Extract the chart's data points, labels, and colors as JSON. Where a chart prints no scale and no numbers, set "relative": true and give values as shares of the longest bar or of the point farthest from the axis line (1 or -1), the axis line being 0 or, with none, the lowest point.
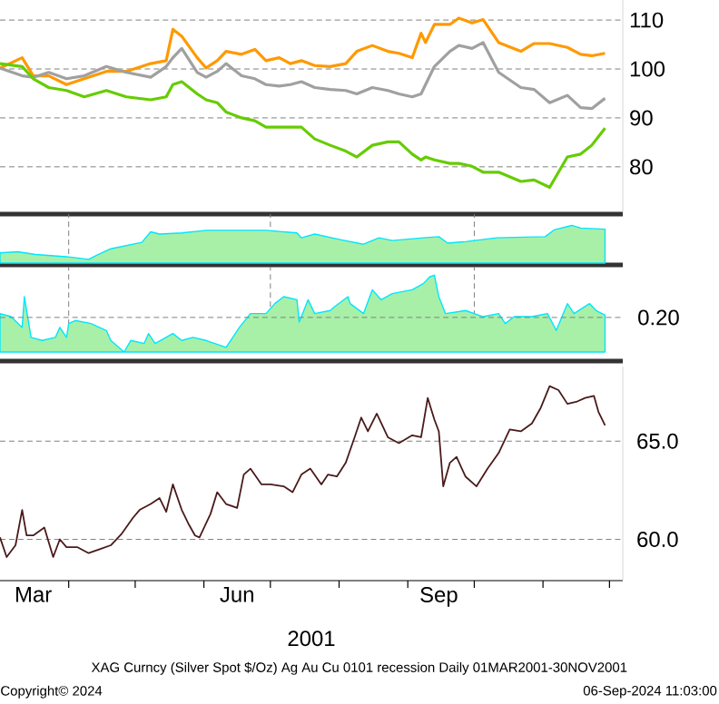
{
  "chart_data": [
    {
      "type": "line",
      "x": [
        "2001-03-01",
        "2001-03-11",
        "2001-03-16",
        "2001-03-23",
        "2001-03-31",
        "2001-04-08",
        "2001-04-18",
        "2001-04-27",
        "2001-05-08",
        "2001-05-15",
        "2001-05-18",
        "2001-05-22",
        "2001-05-29",
        "2001-06-02",
        "2001-06-07",
        "2001-06-11",
        "2001-06-18",
        "2001-06-24",
        "2001-06-29",
        "2001-07-05",
        "2001-07-10",
        "2001-07-15",
        "2001-07-21",
        "2001-07-28",
        "2001-08-04",
        "2001-08-09",
        "2001-08-16",
        "2001-08-23",
        "2001-08-28",
        "2001-09-03",
        "2001-09-07",
        "2001-09-09",
        "2001-09-13",
        "2001-09-20",
        "2001-09-24",
        "2001-09-30",
        "2001-10-05",
        "2001-10-12",
        "2001-10-22",
        "2001-10-28",
        "2001-11-04",
        "2001-11-12",
        "2001-11-18",
        "2001-11-23",
        "2001-11-29"
      ],
      "series": [
        {
          "color": "#ff9900",
          "values": [
            100.2,
            102.3,
            98.6,
            98.6,
            96.8,
            98.0,
            99.5,
            99.5,
            101.1,
            101.7,
            108.1,
            106.7,
            102.3,
            100.2,
            101.7,
            103.6,
            103.0,
            104.0,
            101.7,
            102.3,
            101.1,
            101.7,
            100.7,
            100.5,
            101.1,
            103.6,
            104.8,
            103.6,
            103.2,
            102.3,
            107.3,
            105.4,
            109.1,
            109.1,
            110.4,
            109.4,
            110.1,
            105.4,
            103.6,
            105.2,
            105.2,
            104.4,
            103.0,
            102.7,
            103.2
          ]
        },
        {
          "color": "#a0a0a0",
          "values": [
            100.2,
            98.6,
            98.3,
            99.3,
            98.0,
            98.6,
            100.5,
            99.3,
            98.3,
            100.5,
            102.3,
            104.2,
            99.3,
            98.3,
            99.5,
            101.1,
            98.6,
            98.0,
            96.8,
            96.5,
            96.8,
            97.4,
            96.2,
            95.8,
            95.6,
            94.9,
            96.2,
            95.6,
            94.9,
            94.3,
            94.9,
            96.8,
            100.5,
            103.6,
            104.8,
            104.2,
            105.4,
            99.3,
            96.2,
            95.8,
            93.1,
            94.6,
            92.1,
            91.9,
            94.0
          ]
        },
        {
          "color": "#66cc00",
          "values": [
            101.1,
            100.5,
            98.0,
            96.2,
            95.6,
            94.3,
            95.6,
            94.3,
            93.7,
            94.3,
            96.8,
            97.4,
            94.9,
            93.7,
            93.1,
            91.2,
            90.0,
            89.4,
            88.1,
            88.1,
            88.1,
            88.1,
            85.7,
            84.4,
            83.2,
            82.0,
            84.4,
            85.1,
            85.1,
            82.6,
            81.4,
            82.0,
            81.4,
            80.7,
            80.7,
            80.1,
            78.9,
            78.9,
            77.0,
            77.3,
            75.8,
            82.0,
            82.6,
            84.4,
            87.9
          ]
        }
      ],
      "xlim": [
        "2001-03-01",
        "2001-12-07"
      ],
      "ylim": [
        70.7,
        114.1
      ],
      "yticks": [
        80,
        90,
        100,
        110
      ],
      "grid": "y",
      "tick_labels": "y"
    },
    {
      "type": "area",
      "relative": true,
      "x": [
        "2001-03-01",
        "2001-03-09",
        "2001-03-17",
        "2001-03-31",
        "2001-04-10",
        "2001-04-14",
        "2001-04-20",
        "2001-05-04",
        "2001-05-08",
        "2001-05-12",
        "2001-05-22",
        "2001-06-02",
        "2001-06-29",
        "2001-07-13",
        "2001-07-15",
        "2001-07-21",
        "2001-08-01",
        "2001-08-12",
        "2001-08-19",
        "2001-08-25",
        "2001-09-08",
        "2001-09-15",
        "2001-09-19",
        "2001-09-27",
        "2001-10-11",
        "2001-11-02",
        "2001-11-06",
        "2001-11-14",
        "2001-11-18",
        "2001-11-29"
      ],
      "values": [
        0.27,
        0.3,
        0.23,
        0.17,
        0.1,
        0.22,
        0.38,
        0.55,
        0.83,
        0.77,
        0.8,
        0.87,
        0.87,
        0.8,
        0.67,
        0.77,
        0.63,
        0.5,
        0.67,
        0.6,
        0.67,
        0.7,
        0.53,
        0.57,
        0.67,
        0.7,
        0.88,
        1,
        0.93,
        0.9
      ],
      "color": "#00e5ff",
      "xlim": [
        "2001-03-01",
        "2001-12-07"
      ],
      "xticks": [
        {
          "value": "2001-04-01",
          "label": null
        },
        {
          "value": "2001-07-01",
          "label": null
        },
        {
          "value": "2001-10-01",
          "label": null
        }
      ],
      "grid": "x",
      "tick_labels": false
    },
    {
      "type": "area",
      "relative": true,
      "x": [
        "2001-03-01",
        "2001-03-06",
        "2001-03-11",
        "2001-03-12",
        "2001-03-15",
        "2001-03-20",
        "2001-03-26",
        "2001-03-28",
        "2001-03-31",
        "2001-04-01",
        "2001-04-04",
        "2001-04-11",
        "2001-04-18",
        "2001-04-20",
        "2001-04-26",
        "2001-04-29",
        "2001-05-05",
        "2001-05-07",
        "2001-05-10",
        "2001-05-18",
        "2001-05-22",
        "2001-05-27",
        "2001-06-02",
        "2001-06-11",
        "2001-06-17",
        "2001-06-22",
        "2001-06-29",
        "2001-07-03",
        "2001-07-07",
        "2001-07-13",
        "2001-07-14",
        "2001-07-18",
        "2001-07-21",
        "2001-07-28",
        "2001-07-30",
        "2001-08-05",
        "2001-08-06",
        "2001-08-12",
        "2001-08-16",
        "2001-08-20",
        "2001-08-25",
        "2001-09-03",
        "2001-09-08",
        "2001-09-11",
        "2001-09-13",
        "2001-09-15",
        "2001-09-18",
        "2001-09-27",
        "2001-10-05",
        "2001-10-12",
        "2001-10-15",
        "2001-10-19",
        "2001-10-27",
        "2001-11-03",
        "2001-11-07",
        "2001-11-12",
        "2001-11-15",
        "2001-11-22",
        "2001-11-25",
        "2001-11-29"
      ],
      "values": [
        0.5,
        0.46,
        0.32,
        0.72,
        0.19,
        0.15,
        0.19,
        0.32,
        0.19,
        0.37,
        0.41,
        0.37,
        0.28,
        0.15,
        0,
        0.15,
        0.11,
        0.24,
        0.11,
        0.24,
        0.15,
        0.19,
        0.15,
        0.06,
        0.32,
        0.5,
        0.5,
        0.63,
        0.72,
        0.68,
        0.39,
        0.68,
        0.5,
        0.54,
        0.59,
        0.72,
        0.63,
        0.5,
        0.81,
        0.68,
        0.76,
        0.81,
        0.89,
        0.98,
        1,
        0.72,
        0.5,
        0.54,
        0.46,
        0.5,
        0.37,
        0.46,
        0.46,
        0.5,
        0.28,
        0.63,
        0.5,
        0.63,
        0.54,
        0.48
      ],
      "color": "#00e5ff",
      "xlim": [
        "2001-03-01",
        "2001-12-07"
      ],
      "xticks": [
        {
          "value": "2001-04-01",
          "label": null
        },
        {
          "value": "2001-07-01",
          "label": null
        },
        {
          "value": "2001-10-01",
          "label": null
        }
      ],
      "ref_lines": [
        {
          "axis": "y",
          "value": 0.45,
          "color": "#808080",
          "line_style": "dashed"
        }
      ],
      "annotations": [
        "0.20"
      ],
      "grid": "x",
      "tick_labels": false
    },
    {
      "type": "line",
      "x": [
        "2001-03-01",
        "2001-03-04",
        "2001-03-08",
        "2001-03-11",
        "2001-03-13",
        "2001-03-16",
        "2001-03-21",
        "2001-03-25",
        "2001-03-28",
        "2001-03-31",
        "2001-04-05",
        "2001-04-10",
        "2001-04-15",
        "2001-04-20",
        "2001-04-25",
        "2001-04-30",
        "2001-05-03",
        "2001-05-08",
        "2001-05-12",
        "2001-05-15",
        "2001-05-18",
        "2001-05-22",
        "2001-05-25",
        "2001-05-28",
        "2001-05-30",
        "2001-06-04",
        "2001-06-07",
        "2001-06-11",
        "2001-06-16",
        "2001-06-19",
        "2001-06-22",
        "2001-06-27",
        "2001-07-01",
        "2001-07-07",
        "2001-07-11",
        "2001-07-15",
        "2001-07-19",
        "2001-07-24",
        "2001-07-27",
        "2001-07-31",
        "2001-08-04",
        "2001-08-08",
        "2001-08-11",
        "2001-08-14",
        "2001-08-18",
        "2001-08-23",
        "2001-08-28",
        "2001-09-03",
        "2001-09-07",
        "2001-09-10",
        "2001-09-13",
        "2001-09-15",
        "2001-09-17",
        "2001-09-20",
        "2001-09-23",
        "2001-09-27",
        "2001-10-02",
        "2001-10-07",
        "2001-10-12",
        "2001-10-17",
        "2001-10-22",
        "2001-10-27",
        "2001-10-31",
        "2001-11-04",
        "2001-11-08",
        "2001-11-12",
        "2001-11-16",
        "2001-11-20",
        "2001-11-24",
        "2001-11-26",
        "2001-11-29"
      ],
      "values": [
        60.1,
        59.1,
        59.7,
        61.5,
        60.2,
        60.2,
        60.6,
        59.1,
        60.0,
        59.6,
        59.6,
        59.3,
        59.5,
        59.7,
        60.3,
        61.1,
        61.5,
        61.8,
        62.1,
        61.4,
        62.8,
        61.5,
        60.8,
        60.2,
        60.1,
        61.3,
        62.4,
        61.8,
        61.6,
        63.3,
        63.6,
        62.8,
        62.8,
        62.7,
        62.4,
        63.3,
        63.6,
        62.8,
        63.3,
        63.2,
        63.9,
        65.2,
        66.2,
        65.5,
        66.4,
        65.2,
        64.9,
        65.3,
        65.2,
        67.2,
        66.1,
        65.5,
        62.7,
        63.9,
        64.2,
        63.2,
        62.7,
        63.6,
        64.4,
        65.6,
        65.5,
        65.9,
        66.7,
        67.8,
        67.6,
        66.9,
        67.0,
        67.2,
        67.3,
        66.5,
        65.8
      ],
      "color": "#4a1a1a",
      "xlim": [
        "2001-03-01",
        "2001-12-07"
      ],
      "ylim": [
        57.9,
        68.8
      ],
      "yticks": [
        {
          "value": 60,
          "label": "60.0"
        },
        {
          "value": 65,
          "label": "65.0"
        }
      ],
      "xticks": [
        {
          "value": "2001-04-01",
          "label": null
        },
        {
          "value": "2001-05-01",
          "label": null
        },
        {
          "value": "2001-06-01",
          "label": null
        },
        {
          "value": "2001-07-01",
          "label": null
        },
        {
          "value": "2001-08-01",
          "label": null
        },
        {
          "value": "2001-09-01",
          "label": null
        },
        {
          "value": "2001-10-01",
          "label": null
        },
        {
          "value": "2001-11-01",
          "label": null
        },
        {
          "value": "2001-12-01",
          "label": null
        },
        {
          "value": "2001-03-16",
          "label": "Mar"
        },
        {
          "value": "2001-06-16",
          "label": "Jun"
        },
        {
          "value": "2001-09-15",
          "label": "Sep"
        }
      ],
      "xlabel": "2001",
      "grid": "y",
      "annotations": [
        "XAG Curncy (Silver Spot  $/Oz) Ag Au Cu 0101 recession  Daily 01MAR2001-30NOV2001",
        "Copyright© 2024",
        "06-Sep-2024 11:03:00"
      ]
    }
  ]
}
